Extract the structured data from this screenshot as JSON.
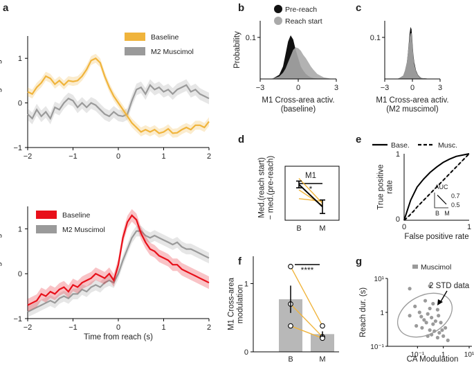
{
  "colors": {
    "baseline_a": "#f0b43c",
    "muscimol": "#9a9a9a",
    "baseline_local": "#e8101a",
    "pre_reach": "#111111",
    "reach_start": "#aaaaaa",
    "bar": "#b8b8b8"
  },
  "chart_data": [
    {
      "id": "a_top",
      "type": "line",
      "panel_letter": "a",
      "ylabel": "Shared signal mag.",
      "xlim": [
        -2,
        2
      ],
      "ylim": [
        -1,
        1.5
      ],
      "xticks": [
        "−2",
        "−1",
        "0",
        "1",
        "2"
      ],
      "yticks": [
        "−1",
        "0",
        "1"
      ],
      "legend": [
        "Baseline",
        "M2 Muscimol"
      ],
      "x": [
        -2.0,
        -1.9,
        -1.8,
        -1.7,
        -1.6,
        -1.5,
        -1.4,
        -1.3,
        -1.2,
        -1.1,
        -1.0,
        -0.9,
        -0.8,
        -0.7,
        -0.6,
        -0.5,
        -0.4,
        -0.3,
        -0.2,
        -0.1,
        0.0,
        0.1,
        0.2,
        0.3,
        0.4,
        0.5,
        0.6,
        0.7,
        0.8,
        0.9,
        1.0,
        1.1,
        1.2,
        1.3,
        1.4,
        1.5,
        1.6,
        1.7,
        1.8,
        1.9,
        2.0
      ],
      "series": [
        {
          "name": "Baseline",
          "values": [
            0.25,
            0.2,
            0.35,
            0.45,
            0.6,
            0.55,
            0.42,
            0.5,
            0.4,
            0.5,
            0.48,
            0.5,
            0.6,
            0.75,
            0.95,
            1.0,
            0.9,
            0.6,
            0.35,
            0.15,
            0.0,
            -0.15,
            -0.3,
            -0.45,
            -0.55,
            -0.65,
            -0.6,
            -0.65,
            -0.6,
            -0.68,
            -0.65,
            -0.58,
            -0.68,
            -0.67,
            -0.6,
            -0.55,
            -0.6,
            -0.5,
            -0.5,
            -0.55,
            -0.42
          ],
          "err": 0.1
        },
        {
          "name": "M2 Muscimol",
          "values": [
            -0.25,
            -0.35,
            -0.15,
            -0.3,
            -0.2,
            -0.35,
            -0.1,
            -0.15,
            0.0,
            0.1,
            0.05,
            -0.1,
            0.0,
            -0.1,
            0.0,
            -0.05,
            -0.15,
            -0.25,
            -0.3,
            -0.2,
            -0.28,
            -0.3,
            -0.25,
            0.05,
            0.3,
            0.35,
            0.2,
            0.4,
            0.3,
            0.35,
            0.25,
            0.3,
            0.2,
            0.3,
            0.35,
            0.4,
            0.25,
            0.3,
            0.2,
            0.15,
            0.1
          ],
          "err": 0.13
        }
      ]
    },
    {
      "id": "a_bottom",
      "type": "line",
      "ylabel": "Local signal mag.",
      "xlabel": "Time from reach (s)",
      "xlim": [
        -2,
        2
      ],
      "ylim": [
        -1,
        1.5
      ],
      "xticks": [
        "−2",
        "−1",
        "0",
        "1",
        "2"
      ],
      "yticks": [
        "−1",
        "0",
        "1"
      ],
      "legend": [
        "Baseline",
        "M2 Muscimol"
      ],
      "x": [
        -2.0,
        -1.9,
        -1.8,
        -1.7,
        -1.6,
        -1.5,
        -1.4,
        -1.3,
        -1.2,
        -1.1,
        -1.0,
        -0.9,
        -0.8,
        -0.7,
        -0.6,
        -0.5,
        -0.4,
        -0.3,
        -0.2,
        -0.1,
        0.0,
        0.1,
        0.2,
        0.3,
        0.4,
        0.5,
        0.6,
        0.7,
        0.8,
        0.9,
        1.0,
        1.1,
        1.2,
        1.3,
        1.4,
        1.5,
        1.6,
        1.7,
        1.8,
        1.9,
        2.0
      ],
      "series": [
        {
          "name": "Baseline",
          "values": [
            -0.7,
            -0.65,
            -0.6,
            -0.45,
            -0.5,
            -0.4,
            -0.45,
            -0.35,
            -0.3,
            -0.4,
            -0.25,
            -0.3,
            -0.2,
            -0.15,
            -0.1,
            0.0,
            -0.05,
            -0.1,
            0.0,
            -0.15,
            0.2,
            0.8,
            1.15,
            1.3,
            1.2,
            0.9,
            0.7,
            0.55,
            0.5,
            0.4,
            0.35,
            0.3,
            0.2,
            0.2,
            0.1,
            0.05,
            0.0,
            -0.05,
            -0.1,
            -0.15,
            -0.2
          ],
          "err": 0.14
        },
        {
          "name": "M2 Muscimol",
          "values": [
            -0.85,
            -0.8,
            -0.75,
            -0.7,
            -0.65,
            -0.6,
            -0.65,
            -0.55,
            -0.5,
            -0.55,
            -0.45,
            -0.45,
            -0.35,
            -0.4,
            -0.3,
            -0.25,
            -0.3,
            -0.2,
            -0.15,
            -0.2,
            0.0,
            0.3,
            0.55,
            0.8,
            0.95,
            0.95,
            0.85,
            0.8,
            0.85,
            0.8,
            0.75,
            0.7,
            0.65,
            0.7,
            0.6,
            0.55,
            0.55,
            0.5,
            0.45,
            0.4,
            0.35
          ],
          "err": 0.12
        }
      ]
    },
    {
      "id": "b",
      "type": "area",
      "panel_letter": "b",
      "ylabel": "Probability",
      "xlabel": [
        "M1 Cross-area activ.",
        "(baseline)"
      ],
      "xlim": [
        -3,
        3
      ],
      "ylim": [
        0,
        0.14
      ],
      "xticks": [
        "−3",
        "0",
        "3"
      ],
      "yticks": [
        "0.1"
      ],
      "legend": [
        "Pre-reach",
        "Reach start"
      ],
      "x": [
        -3,
        -2.5,
        -2,
        -1.5,
        -1.2,
        -1,
        -0.8,
        -0.6,
        -0.4,
        -0.2,
        0,
        0.2,
        0.4,
        0.6,
        0.8,
        1,
        1.2,
        1.5,
        2,
        2.5,
        3
      ],
      "series": [
        {
          "name": "Pre-reach",
          "values": [
            0,
            0,
            0.001,
            0.01,
            0.03,
            0.06,
            0.09,
            0.105,
            0.095,
            0.07,
            0.05,
            0.03,
            0.02,
            0.012,
            0.007,
            0.004,
            0.002,
            0.001,
            0,
            0,
            0
          ]
        },
        {
          "name": "Reach start",
          "values": [
            0,
            0,
            0.001,
            0.006,
            0.015,
            0.025,
            0.04,
            0.055,
            0.07,
            0.076,
            0.074,
            0.068,
            0.058,
            0.05,
            0.04,
            0.03,
            0.022,
            0.012,
            0.004,
            0.001,
            0
          ]
        }
      ]
    },
    {
      "id": "c",
      "type": "area",
      "panel_letter": "c",
      "xlabel": [
        "M1 Cross-area activ.",
        "(M2 muscimol)"
      ],
      "xlim": [
        -3,
        3
      ],
      "ylim": [
        0,
        0.14
      ],
      "xticks": [
        "−3",
        "0",
        "3"
      ],
      "yticks": [
        "0.1"
      ],
      "x": [
        -3,
        -2,
        -1.5,
        -1,
        -0.8,
        -0.6,
        -0.5,
        -0.4,
        -0.3,
        -0.2,
        -0.1,
        0,
        0.1,
        0.2,
        0.4,
        0.6,
        0.8,
        1,
        1.5,
        2,
        3
      ],
      "series": [
        {
          "name": "Pre-reach",
          "values": [
            0,
            0,
            0.001,
            0.008,
            0.02,
            0.04,
            0.06,
            0.085,
            0.11,
            0.125,
            0.12,
            0.09,
            0.06,
            0.04,
            0.02,
            0.01,
            0.005,
            0.002,
            0.001,
            0,
            0
          ]
        },
        {
          "name": "Reach start",
          "values": [
            0,
            0,
            0.001,
            0.008,
            0.02,
            0.04,
            0.06,
            0.08,
            0.1,
            0.11,
            0.11,
            0.085,
            0.055,
            0.035,
            0.018,
            0.009,
            0.004,
            0.002,
            0.001,
            0,
            0
          ]
        }
      ]
    },
    {
      "id": "d",
      "type": "line",
      "panel_letter": "d",
      "ylabel": [
        "Med.(reach start)",
        "− med.(pre-reach)"
      ],
      "categories": [
        "B",
        "M"
      ],
      "annotation": "M1",
      "significance": "*",
      "ylim": [
        -0.2,
        0.6
      ],
      "mean": {
        "values": [
          0.33,
          0.0
        ],
        "err": [
          0.05,
          0.1
        ]
      },
      "animals": [
        [
          0.42,
          0.05
        ],
        [
          0.25,
          0.02
        ],
        [
          0.12,
          0.08
        ]
      ]
    },
    {
      "id": "e",
      "type": "line",
      "panel_letter": "e",
      "xlabel": "False positive rate",
      "ylabel": [
        "True positive",
        "rate"
      ],
      "xlim": [
        0,
        1
      ],
      "ylim": [
        0,
        1
      ],
      "xticks": [
        "0",
        "1"
      ],
      "yticks": [
        "0",
        "1"
      ],
      "legend": [
        "Base.",
        "Musc."
      ],
      "x": [
        0,
        0.05,
        0.1,
        0.15,
        0.2,
        0.3,
        0.4,
        0.5,
        0.6,
        0.7,
        0.8,
        0.9,
        1.0
      ],
      "series": [
        {
          "name": "Base.",
          "values": [
            0,
            0.15,
            0.3,
            0.4,
            0.5,
            0.62,
            0.72,
            0.8,
            0.87,
            0.92,
            0.96,
            0.98,
            1.0
          ]
        },
        {
          "name": "Musc.",
          "values": [
            0,
            0.04,
            0.09,
            0.14,
            0.2,
            0.3,
            0.4,
            0.5,
            0.6,
            0.7,
            0.8,
            0.9,
            1.0
          ]
        }
      ],
      "inset": {
        "title": "AUC",
        "categories": [
          "B",
          "M"
        ],
        "values": [
          0.7,
          0.52
        ],
        "yticks": [
          "0.7",
          "0.5"
        ]
      }
    },
    {
      "id": "f",
      "type": "bar",
      "panel_letter": "f",
      "ylabel": [
        "M1 Cross-area",
        "modulation"
      ],
      "categories": [
        "B",
        "M"
      ],
      "values": [
        0.77,
        0.26
      ],
      "err": [
        0.2,
        0.04
      ],
      "ylim": [
        0,
        1.4
      ],
      "yticks": [
        "0",
        "1"
      ],
      "significance": "****",
      "animals": [
        [
          1.25,
          0.38
        ],
        [
          0.7,
          0.22
        ],
        [
          0.38,
          0.2
        ]
      ]
    },
    {
      "id": "g",
      "type": "scatter",
      "panel_letter": "g",
      "xlabel": "CA Modulation",
      "ylabel": "Reach dur. (s)",
      "xscale": "log",
      "yscale": "log",
      "xlim": [
        0.01,
        10
      ],
      "ylim": [
        0.1,
        10
      ],
      "xticks": [
        "10⁻¹",
        "1",
        "10¹"
      ],
      "yticks": [
        "10⁻¹",
        "1",
        "10¹"
      ],
      "legend": [
        "Muscimol"
      ],
      "annotation": "2 STD data",
      "points": [
        [
          0.05,
          5
        ],
        [
          0.3,
          6
        ],
        [
          0.08,
          1.5
        ],
        [
          0.2,
          2.2
        ],
        [
          0.4,
          1.8
        ],
        [
          0.6,
          1.2
        ],
        [
          0.12,
          1.0
        ],
        [
          0.25,
          0.9
        ],
        [
          0.35,
          0.7
        ],
        [
          0.18,
          0.6
        ],
        [
          0.5,
          0.55
        ],
        [
          0.8,
          0.5
        ],
        [
          0.09,
          0.4
        ],
        [
          0.15,
          0.35
        ],
        [
          0.3,
          0.3
        ],
        [
          0.45,
          0.28
        ],
        [
          0.7,
          0.25
        ],
        [
          1.0,
          0.2
        ],
        [
          0.25,
          0.2
        ],
        [
          0.6,
          0.18
        ],
        [
          1.5,
          0.15
        ],
        [
          0.4,
          0.45
        ],
        [
          0.22,
          0.5
        ],
        [
          0.05,
          0.8
        ],
        [
          0.9,
          0.3
        ],
        [
          0.3,
          1.3
        ],
        [
          0.14,
          0.75
        ],
        [
          0.65,
          0.8
        ],
        [
          1.2,
          0.35
        ],
        [
          0.35,
          0.22
        ]
      ]
    }
  ]
}
